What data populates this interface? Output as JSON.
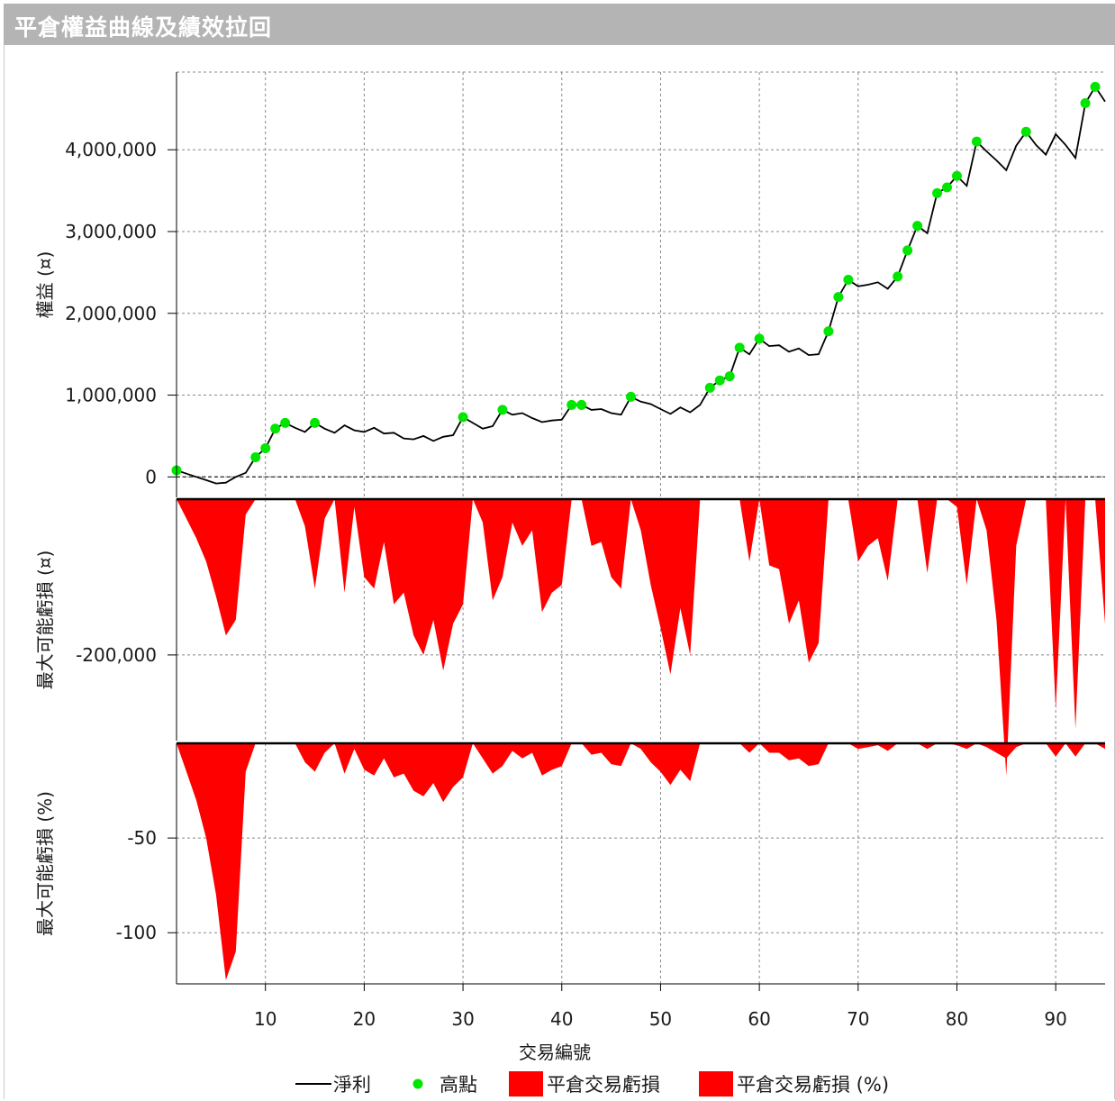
{
  "window": {
    "title": "平倉權益曲線及績效拉回"
  },
  "chart_data": {
    "type": "line",
    "xlabel": "交易編號",
    "x_ticks": [
      10,
      20,
      30,
      40,
      50,
      60,
      70,
      80,
      90
    ],
    "xlim": [
      1,
      95
    ],
    "legend": [
      {
        "label": "淨利",
        "kind": "line",
        "color": "#000000"
      },
      {
        "label": "高點",
        "kind": "dot",
        "color": "#00e600"
      },
      {
        "label": "平倉交易虧損",
        "kind": "box",
        "color": "#ff0000"
      },
      {
        "label": "平倉交易虧損 (%)",
        "kind": "box",
        "color": "#ff0000"
      }
    ],
    "panels": [
      {
        "name": "equity",
        "ylabel": "權益 (¤)",
        "ylim": [
          -250000,
          4950000
        ],
        "y_ticks": [
          0,
          1000000,
          2000000,
          3000000,
          4000000
        ],
        "y_tick_labels": [
          "0",
          "1,000,000",
          "2,000,000",
          "3,000,000",
          "4,000,000"
        ],
        "series": [
          {
            "name": "淨利",
            "values": [
              80000,
              40000,
              0,
              -40000,
              -80000,
              -70000,
              0,
              50000,
              240000,
              350000,
              590000,
              660000,
              600000,
              550000,
              660000,
              590000,
              540000,
              630000,
              570000,
              550000,
              600000,
              530000,
              540000,
              470000,
              460000,
              500000,
              440000,
              490000,
              510000,
              730000,
              660000,
              590000,
              620000,
              820000,
              760000,
              780000,
              720000,
              670000,
              690000,
              700000,
              880000,
              880000,
              820000,
              830000,
              780000,
              760000,
              980000,
              920000,
              890000,
              830000,
              770000,
              850000,
              790000,
              880000,
              1090000,
              1180000,
              1230000,
              1580000,
              1500000,
              1690000,
              1600000,
              1610000,
              1530000,
              1570000,
              1490000,
              1500000,
              1780000,
              2200000,
              2410000,
              2330000,
              2350000,
              2380000,
              2300000,
              2450000,
              2770000,
              3070000,
              2980000,
              3470000,
              3540000,
              3680000,
              3560000,
              4100000,
              3980000,
              3870000,
              3750000,
              4050000,
              4220000,
              4060000,
              3940000,
              4190000,
              4060000,
              3900000,
              4570000,
              4770000,
              4590000
            ]
          }
        ],
        "highs_x": [
          1,
          9,
          10,
          11,
          12,
          15,
          30,
          34,
          41,
          42,
          47,
          55,
          56,
          57,
          58,
          60,
          67,
          68,
          69,
          74,
          75,
          76,
          78,
          79,
          80,
          82,
          87,
          93,
          94
        ]
      },
      {
        "name": "drawdown_abs",
        "ylabel": "最大可能虧損 (¤)",
        "ylim": [
          -310000,
          0
        ],
        "y_ticks": [
          -200000
        ],
        "y_tick_labels": [
          "-200,000"
        ],
        "series": [
          {
            "name": "平倉交易虧損",
            "values": [
              0,
              -25000,
              -50000,
              -80000,
              -125000,
              -175000,
              -155000,
              -20000,
              0,
              0,
              0,
              0,
              0,
              -35000,
              -115000,
              -25000,
              0,
              -120000,
              -10000,
              -100000,
              -115000,
              -55000,
              -135000,
              -120000,
              -175000,
              -200000,
              -155000,
              -220000,
              -160000,
              -135000,
              0,
              -30000,
              -130000,
              -100000,
              -30000,
              -60000,
              -40000,
              -145000,
              -120000,
              -110000,
              0,
              0,
              -60000,
              -55000,
              -100000,
              -115000,
              0,
              -40000,
              -110000,
              -165000,
              -225000,
              -140000,
              -200000,
              0,
              0,
              0,
              0,
              0,
              -80000,
              0,
              -85000,
              -90000,
              -160000,
              -130000,
              -210000,
              -185000,
              0,
              0,
              0,
              -80000,
              -60000,
              -50000,
              -105000,
              0,
              0,
              0,
              -95000,
              0,
              0,
              -10000,
              -110000,
              0,
              -40000,
              -155000,
              -355000,
              -60000,
              0,
              0,
              0,
              -270000,
              0,
              -295000,
              0,
              0,
              -160000
            ]
          }
        ]
      },
      {
        "name": "drawdown_pct",
        "ylabel": "最大可能虧損 (%)",
        "ylim": [
          -127,
          0
        ],
        "y_ticks": [
          -50,
          -100
        ],
        "y_tick_labels": [
          "-50",
          "-100"
        ],
        "series": [
          {
            "name": "平倉交易虧損 (%)",
            "values": [
              0,
              -15,
              -30,
              -50,
              -80,
              -125,
              -110,
              -15,
              0,
              0,
              0,
              0,
              0,
              -10,
              -15,
              -5,
              0,
              -16,
              -3,
              -14,
              -17,
              -8,
              -18,
              -16,
              -25,
              -28,
              -21,
              -31,
              -23,
              -18,
              0,
              -8,
              -16,
              -12,
              -4,
              -8,
              -5,
              -17,
              -14,
              -12,
              0,
              0,
              -6,
              -5,
              -11,
              -12,
              0,
              -3,
              -10,
              -15,
              -22,
              -14,
              -20,
              0,
              0,
              0,
              0,
              0,
              -5,
              0,
              -5,
              -5,
              -9,
              -8,
              -12,
              -11,
              0,
              0,
              0,
              -3,
              -2,
              -1,
              -4,
              0,
              0,
              0,
              -3,
              0,
              0,
              -1,
              -3,
              0,
              -2,
              -5,
              -8,
              -2,
              0,
              0,
              0,
              -7,
              0,
              -7,
              0,
              0,
              -3
            ]
          }
        ]
      }
    ]
  }
}
